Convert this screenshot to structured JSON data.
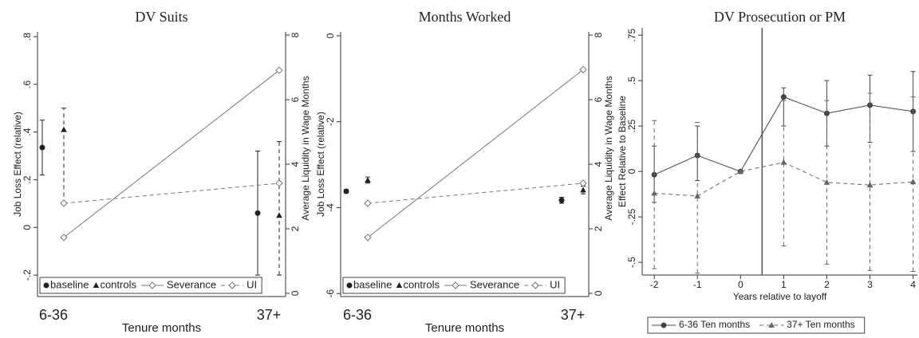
{
  "chart_data": [
    {
      "type": "errorbar",
      "title": "DV Suits",
      "xlabel": "Tenure months",
      "ylabel": "Job Loss Effect (relative)",
      "y2label": "Average Liquidity in Wage Months",
      "categories": [
        "6-36",
        "37+"
      ],
      "ylim": [
        -0.29,
        0.82
      ],
      "yticks": [
        {
          "value": -0.2,
          "label": "-.2"
        },
        0,
        {
          "value": 0.2,
          "label": ".2"
        },
        {
          "value": 0.4,
          "label": ".4"
        },
        {
          "value": 0.6,
          "label": ".6"
        },
        {
          "value": 0.8,
          "label": ".8"
        }
      ],
      "y2lim": [
        -0.1,
        8.1
      ],
      "y2ticks": [
        0,
        2,
        4,
        6,
        8
      ],
      "legend": "inside-bottom",
      "series": [
        {
          "name": "baseline",
          "color": "#222222",
          "marker": "circle",
          "dash": false,
          "connect": false,
          "values": [
            0.335,
            0.06
          ],
          "lower": [
            0.22,
            -0.2
          ],
          "upper": [
            0.45,
            0.32
          ]
        },
        {
          "name": "controls",
          "color": "#222222",
          "marker": "triangle",
          "dash": true,
          "connect": false,
          "values": [
            0.41,
            0.05
          ],
          "lower": [
            0.1,
            -0.2
          ],
          "upper": [
            0.5,
            0.36
          ]
        },
        {
          "name": "Severance",
          "color": "#777777",
          "marker": "diamond",
          "dash": false,
          "connect": true,
          "axis": "y2",
          "values": [
            1.73,
            6.91
          ]
        },
        {
          "name": "UI",
          "color": "#777777",
          "marker": "diamond",
          "dash": true,
          "connect": true,
          "axis": "y2",
          "values": [
            2.79,
            3.41
          ]
        }
      ]
    },
    {
      "type": "errorbar",
      "title": "Months Worked",
      "xlabel": "Tenure months",
      "ylabel": "Job Loss Effect (relative)",
      "y2label": "Average Liquidity in Wage Months",
      "categories": [
        "6-36",
        "37+"
      ],
      "ylim": [
        -6.07,
        0.09
      ],
      "yticks": [
        -6,
        -4,
        -2,
        0
      ],
      "y2lim": [
        -0.1,
        8.1
      ],
      "y2ticks": [
        0,
        2,
        4,
        6,
        8
      ],
      "legend": "inside-bottom",
      "series": [
        {
          "name": "baseline",
          "color": "#222222",
          "marker": "circle",
          "dash": false,
          "connect": false,
          "values": [
            -3.62,
            -3.83
          ],
          "lower": [
            -3.66,
            -3.9
          ],
          "upper": [
            -3.58,
            -3.76
          ]
        },
        {
          "name": "controls",
          "color": "#222222",
          "marker": "triangle",
          "dash": true,
          "connect": false,
          "values": [
            -3.36,
            -3.59
          ],
          "lower": [
            -3.43,
            -3.68
          ],
          "upper": [
            -3.29,
            -3.5
          ]
        },
        {
          "name": "Severance",
          "color": "#777777",
          "marker": "diamond",
          "dash": false,
          "connect": true,
          "axis": "y2",
          "values": [
            1.73,
            6.93
          ]
        },
        {
          "name": "UI",
          "color": "#777777",
          "marker": "diamond",
          "dash": true,
          "connect": true,
          "axis": "y2",
          "values": [
            2.79,
            3.41
          ]
        }
      ]
    },
    {
      "type": "errorbar",
      "title": "DV Prosecution or PM",
      "xlabel": "Years relative to layoff",
      "ylabel": "Effect Relative to Baseline",
      "x": [
        -2,
        -1,
        0,
        1,
        2,
        3,
        4
      ],
      "xlim": [
        -2.28,
        4.1
      ],
      "xticks": [
        -2,
        -1,
        0,
        1,
        2,
        3,
        4
      ],
      "ylim": [
        -0.57,
        0.79
      ],
      "yticks": [
        {
          "value": -0.5,
          "label": "-.5"
        },
        {
          "value": -0.25,
          "label": "-.25"
        },
        0,
        {
          "value": 0.25,
          "label": ".25"
        },
        {
          "value": 0.5,
          "label": ".5"
        },
        {
          "value": 0.75,
          "label": ".75"
        }
      ],
      "vline": 0.5,
      "legend": "below",
      "series": [
        {
          "name": "6-36 Ten months",
          "color": "#444444",
          "marker": "circle",
          "dash": false,
          "connect": true,
          "values": [
            -0.018,
            0.088,
            0,
            0.41,
            0.32,
            0.365,
            0.33
          ],
          "lower": [
            -0.17,
            -0.05,
            null,
            0.25,
            0.14,
            0.16,
            0.11
          ],
          "upper": [
            0.14,
            0.25,
            null,
            0.46,
            0.5,
            0.53,
            0.55
          ]
        },
        {
          "name": "37+ Ten months",
          "color": "#666666",
          "marker": "triangle",
          "dash": true,
          "connect": true,
          "values": [
            -0.12,
            -0.135,
            0,
            0.05,
            -0.06,
            -0.075,
            -0.057
          ],
          "lower": [
            -0.535,
            -0.56,
            null,
            -0.41,
            -0.51,
            -0.545,
            -0.55
          ],
          "upper": [
            0.28,
            0.27,
            null,
            0.39,
            0.39,
            0.43,
            0.41
          ]
        }
      ]
    }
  ]
}
